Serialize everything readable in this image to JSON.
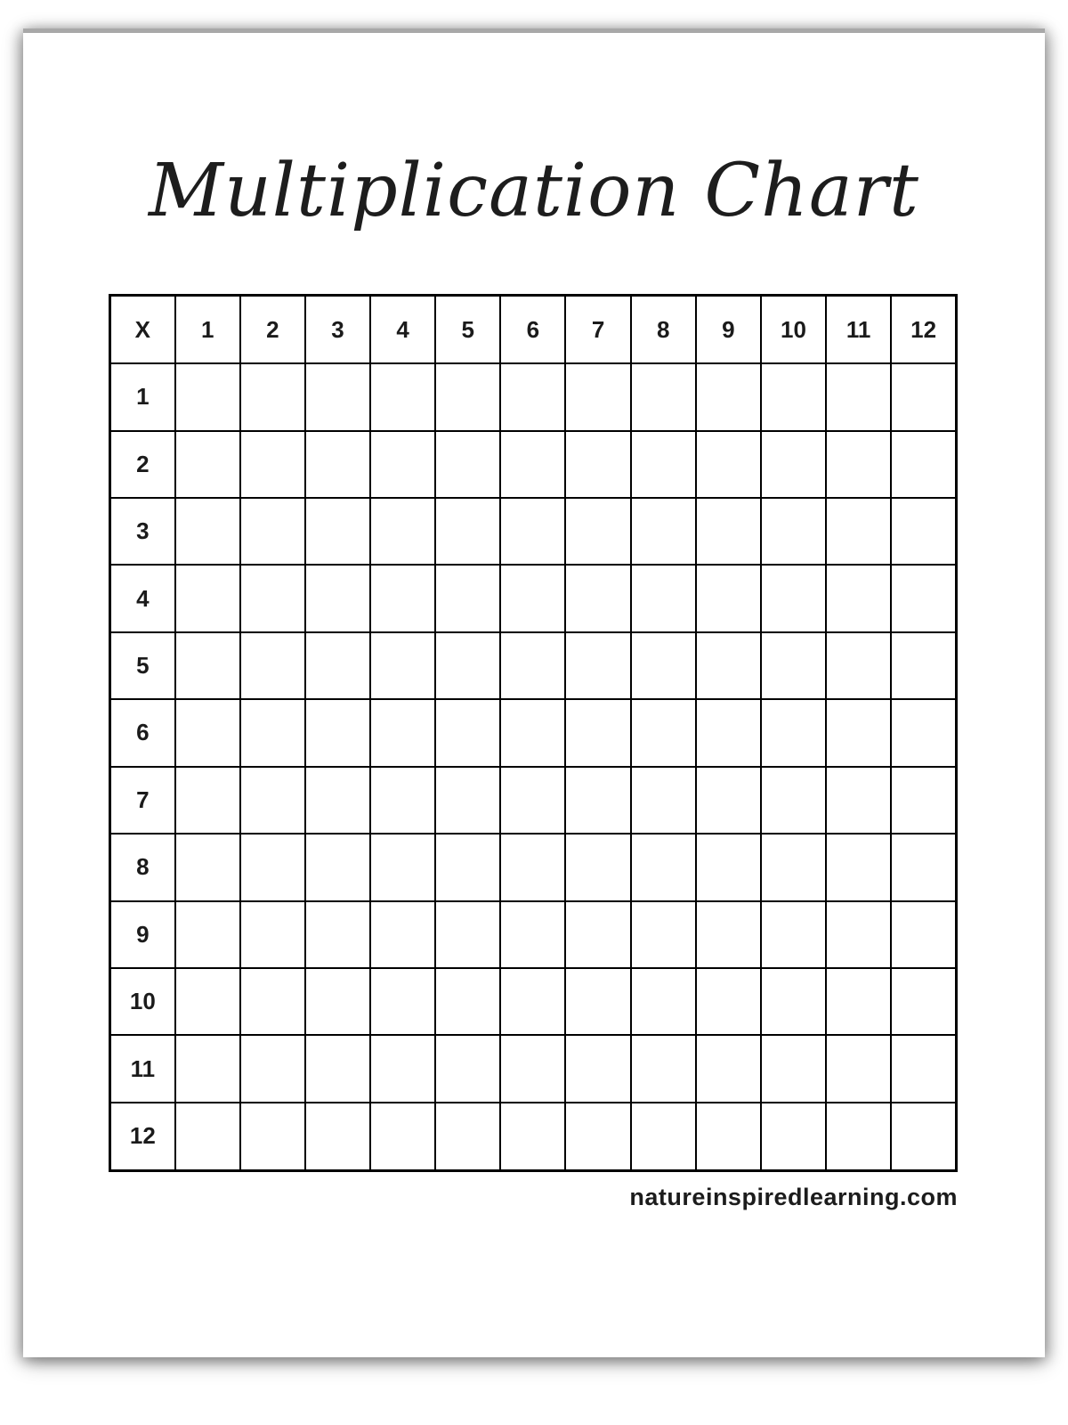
{
  "page": {
    "title": "Multiplication Chart",
    "footer": "natureinspiredlearning.com"
  },
  "table": {
    "corner_label": "X",
    "col_headers": [
      "1",
      "2",
      "3",
      "4",
      "5",
      "6",
      "7",
      "8",
      "9",
      "10",
      "11",
      "12"
    ],
    "row_labels": [
      "1",
      "2",
      "3",
      "4",
      "5",
      "6",
      "7",
      "8",
      "9",
      "10",
      "11",
      "12"
    ],
    "body_cells_blank": true
  },
  "colors": {
    "grid_line": "#000000",
    "paper": "#ffffff",
    "text": "#1c1c1c",
    "page_edge_shadow": "#a8a8a8"
  }
}
